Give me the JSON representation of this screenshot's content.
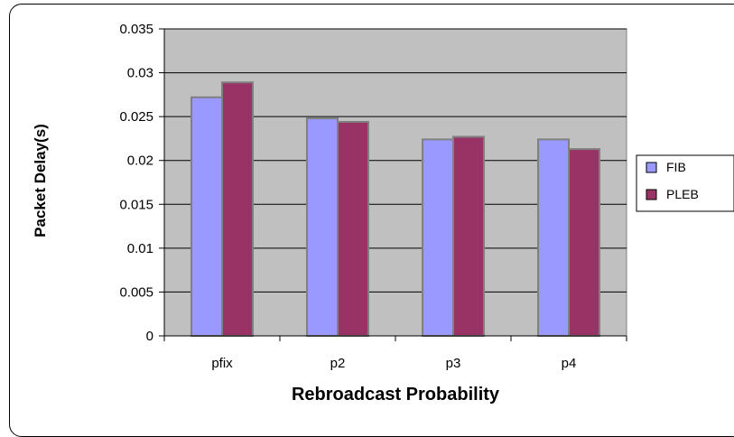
{
  "chart_data": {
    "type": "bar",
    "categories": [
      "pfix",
      "p2",
      "p3",
      "p4"
    ],
    "series": [
      {
        "name": "FIB",
        "values": [
          0.0272,
          0.0248,
          0.0224,
          0.0224
        ],
        "color": "#9999ff"
      },
      {
        "name": "PLEB",
        "values": [
          0.0289,
          0.0244,
          0.0227,
          0.0213
        ],
        "color": "#993366"
      }
    ],
    "title": "",
    "xlabel": "Rebroadcast Probability",
    "ylabel": "Packet Delay(s)",
    "ylim": [
      0,
      0.035
    ],
    "yticks": [
      "0",
      "0.005",
      "0.01",
      "0.015",
      "0.02",
      "0.025",
      "0.03",
      "0.035"
    ],
    "grid": true,
    "legend": "right",
    "plot_background": "#c0c0c0"
  }
}
